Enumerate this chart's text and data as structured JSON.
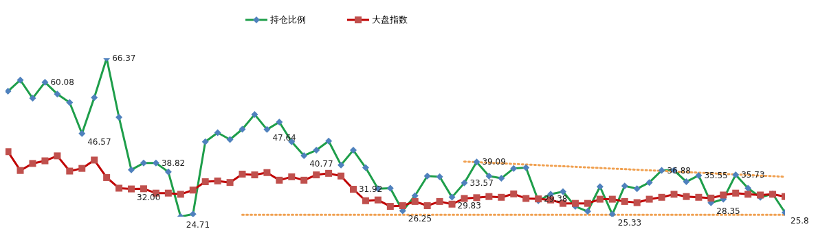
{
  "chart_data": {
    "type": "line",
    "legend": "top",
    "categories": [
      null,
      null,
      null,
      null,
      null,
      null,
      null,
      null,
      null,
      null,
      null,
      null,
      null,
      null,
      null,
      null,
      null,
      null,
      null,
      null,
      null,
      null,
      null,
      null,
      null,
      null,
      null,
      null,
      null,
      null,
      null,
      null,
      null,
      null,
      null,
      null,
      null,
      null,
      null,
      null,
      null,
      null,
      null,
      null,
      null,
      null,
      null,
      null,
      null,
      null,
      null,
      null,
      null,
      null,
      null,
      null,
      null,
      null,
      null,
      null,
      null,
      null,
      null,
      null
    ],
    "series": [
      {
        "name": "持仓比例",
        "color": "#1e9e4a",
        "marker": "diamond",
        "values": [
          57.7,
          60.65,
          55.85,
          60.08,
          56.96,
          54.75,
          46.57,
          56.04,
          66.37,
          50.87,
          37.04,
          38.8,
          38.82,
          36.5,
          24.71,
          25.4,
          44.4,
          46.8,
          45.0,
          47.7,
          51.6,
          47.64,
          49.6,
          44.4,
          40.77,
          42.2,
          44.6,
          38.3,
          42.2,
          37.6,
          32.05,
          32.2,
          26.25,
          30.2,
          35.4,
          35.2,
          29.83,
          33.57,
          39.09,
          35.4,
          34.8,
          37.4,
          37.6,
          28.9,
          30.6,
          31.3,
          27.4,
          26.1,
          32.6,
          25.33,
          32.8,
          32.05,
          33.7,
          36.88,
          36.9,
          33.9,
          35.55,
          28.35,
          29.3,
          35.73,
          32.2,
          29.8,
          30.7,
          25.8
        ],
        "value_labels": [
          null,
          null,
          null,
          "60.08",
          null,
          null,
          "46.57",
          null,
          "66.37",
          null,
          null,
          null,
          "38.82",
          null,
          "24.71",
          null,
          null,
          null,
          null,
          null,
          null,
          "47.64",
          null,
          null,
          "40.77",
          null,
          null,
          null,
          null,
          null,
          null,
          null,
          "26.25",
          null,
          null,
          null,
          "29.83",
          "33.57",
          "39.09",
          null,
          null,
          null,
          null,
          null,
          null,
          null,
          null,
          null,
          null,
          "25.33",
          null,
          null,
          null,
          "36.88",
          null,
          null,
          "35.55",
          "28.35",
          null,
          "35.73",
          null,
          null,
          null,
          "25.8"
        ]
      },
      {
        "name": "大盘指数",
        "color": "#c00000",
        "marker": "square",
        "values": [
          41.8,
          36.85,
          38.7,
          39.4,
          40.7,
          36.7,
          37.4,
          39.6,
          35.0,
          32.2,
          32.0,
          32.05,
          30.9,
          30.9,
          30.6,
          31.7,
          33.9,
          34.1,
          33.7,
          35.9,
          35.7,
          36.3,
          34.3,
          35.2,
          34.3,
          35.7,
          36.1,
          35.4,
          31.92,
          28.9,
          29.1,
          27.4,
          27.6,
          28.7,
          27.6,
          28.7,
          28.0,
          29.5,
          29.7,
          30.0,
          29.8,
          30.7,
          29.5,
          29.38,
          29.1,
          28.2,
          28.2,
          28.2,
          29.3,
          29.3,
          28.7,
          28.4,
          29.3,
          29.8,
          30.6,
          30.0,
          29.8,
          29.6,
          30.4,
          30.9,
          30.6,
          30.4,
          30.6,
          30.0
        ],
        "value_labels": [
          null,
          null,
          null,
          null,
          null,
          null,
          null,
          null,
          null,
          null,
          "32.00",
          null,
          null,
          null,
          null,
          null,
          null,
          null,
          null,
          null,
          null,
          null,
          null,
          null,
          null,
          null,
          null,
          null,
          "31.92",
          null,
          null,
          null,
          null,
          null,
          null,
          null,
          null,
          null,
          null,
          null,
          null,
          null,
          null,
          "29.38",
          null,
          null,
          null,
          null,
          null,
          null,
          null,
          null,
          null,
          null,
          null,
          null,
          null,
          null,
          null,
          null,
          null,
          null,
          null,
          null
        ]
      },
      {
        "type": "line",
        "color": "#f0a050",
        "marker": "none",
        "line_style": "dotted",
        "values": [
          null,
          null,
          null,
          null,
          null,
          null,
          null,
          null,
          null,
          null,
          null,
          null,
          null,
          null,
          null,
          null,
          null,
          null,
          null,
          null,
          null,
          null,
          null,
          null,
          null,
          null,
          null,
          null,
          null,
          null,
          null,
          null,
          null,
          null,
          null,
          null,
          null,
          39.2,
          null,
          null,
          null,
          null,
          null,
          null,
          null,
          null,
          null,
          null,
          null,
          null,
          null,
          null,
          null,
          null,
          null,
          null,
          null,
          null,
          null,
          null,
          null,
          null,
          null,
          35.2
        ]
      },
      {
        "type": "line",
        "color": "#f0a050",
        "marker": "none",
        "line_style": "dotted",
        "values": [
          null,
          null,
          null,
          null,
          null,
          null,
          null,
          null,
          null,
          null,
          null,
          null,
          null,
          null,
          null,
          null,
          null,
          null,
          null,
          25.2,
          null,
          null,
          null,
          null,
          null,
          null,
          null,
          null,
          null,
          null,
          null,
          null,
          null,
          null,
          null,
          null,
          null,
          null,
          null,
          null,
          null,
          null,
          null,
          null,
          null,
          null,
          null,
          null,
          null,
          null,
          null,
          null,
          null,
          null,
          null,
          null,
          null,
          null,
          null,
          null,
          null,
          null,
          null,
          25.2
        ]
      }
    ]
  }
}
